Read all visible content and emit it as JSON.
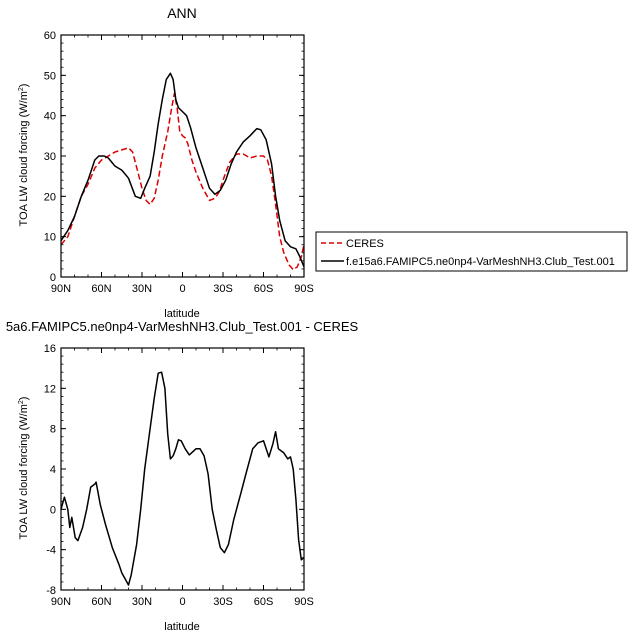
{
  "chart_data": [
    {
      "type": "line",
      "title": "ANN",
      "xlabel": "latitude",
      "ylabel_main": "TOA LW cloud forcing (W/m",
      "ylabel_sup": "2",
      "ylabel_close": ")",
      "xlim": [
        90,
        -90
      ],
      "ylim": [
        0,
        60
      ],
      "x_ticks": [
        90,
        60,
        30,
        0,
        -30,
        -60,
        -90
      ],
      "x_tick_labels": [
        "90N",
        "60N",
        "30N",
        "0",
        "30S",
        "60S",
        "90S"
      ],
      "y_ticks": [
        0,
        10,
        20,
        30,
        40,
        50,
        60
      ],
      "y_tick_labels": [
        "0",
        "10",
        "20",
        "30",
        "40",
        "50",
        "60"
      ],
      "legend_position": "right",
      "series": [
        {
          "name": "CERES",
          "color": "#dd0000",
          "dash": "dashed",
          "points": [
            [
              90,
              8
            ],
            [
              85,
              10
            ],
            [
              80,
              15
            ],
            [
              75,
              20
            ],
            [
              70,
              23
            ],
            [
              65,
              27
            ],
            [
              60,
              29
            ],
            [
              55,
              30
            ],
            [
              50,
              31
            ],
            [
              45,
              31.5
            ],
            [
              40,
              32
            ],
            [
              37,
              31
            ],
            [
              33,
              26
            ],
            [
              30,
              22
            ],
            [
              27,
              19
            ],
            [
              24,
              18
            ],
            [
              21,
              19.5
            ],
            [
              18,
              24
            ],
            [
              15,
              30
            ],
            [
              11,
              36
            ],
            [
              8,
              42
            ],
            [
              6,
              45.5
            ],
            [
              4,
              42
            ],
            [
              2,
              36
            ],
            [
              0,
              35
            ],
            [
              -2,
              34.5
            ],
            [
              -4,
              33
            ],
            [
              -7,
              29
            ],
            [
              -10,
              26
            ],
            [
              -15,
              22
            ],
            [
              -20,
              19
            ],
            [
              -24,
              19.5
            ],
            [
              -27,
              21
            ],
            [
              -31,
              25
            ],
            [
              -35,
              28.5
            ],
            [
              -40,
              30.5
            ],
            [
              -45,
              30.5
            ],
            [
              -50,
              29.5
            ],
            [
              -55,
              30
            ],
            [
              -60,
              30
            ],
            [
              -63,
              29
            ],
            [
              -66,
              25
            ],
            [
              -69,
              18
            ],
            [
              -72,
              10
            ],
            [
              -75,
              6
            ],
            [
              -79,
              3
            ],
            [
              -82,
              1.8
            ],
            [
              -85,
              2.5
            ],
            [
              -88,
              5
            ],
            [
              -90,
              8
            ]
          ]
        },
        {
          "name": "f.e15a6.FAMIPC5.ne0np4-VarMeshNH3.Club_Test.001",
          "color": "#000000",
          "dash": "solid",
          "points": [
            [
              90,
              9
            ],
            [
              85,
              11.5
            ],
            [
              80,
              15
            ],
            [
              75,
              20
            ],
            [
              70,
              24
            ],
            [
              65,
              29
            ],
            [
              62,
              30
            ],
            [
              58,
              30
            ],
            [
              55,
              29.5
            ],
            [
              50,
              27.5
            ],
            [
              45,
              26.5
            ],
            [
              40,
              24.5
            ],
            [
              35,
              20
            ],
            [
              31,
              19.5
            ],
            [
              28,
              22
            ],
            [
              24,
              25
            ],
            [
              21,
              31
            ],
            [
              18,
              38
            ],
            [
              15,
              44
            ],
            [
              12,
              49
            ],
            [
              9,
              50.5
            ],
            [
              7,
              49
            ],
            [
              5,
              44
            ],
            [
              3,
              42
            ],
            [
              0,
              41
            ],
            [
              -3,
              40
            ],
            [
              -6,
              37
            ],
            [
              -10,
              32
            ],
            [
              -15,
              27
            ],
            [
              -20,
              22
            ],
            [
              -24,
              20.5
            ],
            [
              -28,
              21.5
            ],
            [
              -32,
              24
            ],
            [
              -36,
              28
            ],
            [
              -40,
              31
            ],
            [
              -45,
              33.5
            ],
            [
              -50,
              35
            ],
            [
              -55,
              36.8
            ],
            [
              -58,
              36.5
            ],
            [
              -62,
              34
            ],
            [
              -66,
              28
            ],
            [
              -69,
              20
            ],
            [
              -72,
              14
            ],
            [
              -76,
              9
            ],
            [
              -80,
              7.5
            ],
            [
              -84,
              7
            ],
            [
              -87,
              5
            ],
            [
              -90,
              2.5
            ]
          ]
        }
      ]
    },
    {
      "type": "line",
      "title": "5a6.FAMIPC5.ne0np4-VarMeshNH3.Club_Test.001 - CERES",
      "xlabel": "latitude",
      "ylabel_main": "TOA LW cloud forcing (W/m",
      "ylabel_sup": "2",
      "ylabel_close": ")",
      "xlim": [
        90,
        -90
      ],
      "ylim": [
        -8,
        16
      ],
      "x_ticks": [
        90,
        60,
        30,
        0,
        -30,
        -60,
        -90
      ],
      "x_tick_labels": [
        "90N",
        "60N",
        "30N",
        "0",
        "30S",
        "60S",
        "90S"
      ],
      "y_ticks": [
        -8,
        -4,
        0,
        4,
        8,
        12,
        16
      ],
      "y_tick_labels": [
        "-8",
        "-4",
        "0",
        "4",
        "8",
        "12",
        "16"
      ],
      "series": [
        {
          "color": "#000000",
          "dash": "solid",
          "points": [
            [
              90,
              0
            ],
            [
              87.5,
              1.2
            ],
            [
              85,
              0
            ],
            [
              83.5,
              -1.8
            ],
            [
              82,
              -0.8
            ],
            [
              79.5,
              -2.8
            ],
            [
              77.5,
              -3.1
            ],
            [
              74,
              -1.8
            ],
            [
              71,
              0
            ],
            [
              68,
              2.2
            ],
            [
              65,
              2.5
            ],
            [
              64,
              2.7
            ],
            [
              61,
              0.5
            ],
            [
              57,
              -1.5
            ],
            [
              52,
              -3.8
            ],
            [
              47,
              -5.5
            ],
            [
              45,
              -6.3
            ],
            [
              40,
              -7.5
            ],
            [
              38,
              -6.5
            ],
            [
              34,
              -3.5
            ],
            [
              31,
              0
            ],
            [
              28,
              4
            ],
            [
              24,
              8
            ],
            [
              21,
              11
            ],
            [
              18,
              13.5
            ],
            [
              15.5,
              13.6
            ],
            [
              13,
              12
            ],
            [
              11,
              7.5
            ],
            [
              9,
              5
            ],
            [
              7,
              5.3
            ],
            [
              5,
              6
            ],
            [
              3,
              6.9
            ],
            [
              1,
              6.8
            ],
            [
              -2,
              6
            ],
            [
              -5,
              5.4
            ],
            [
              -10,
              6
            ],
            [
              -13,
              6
            ],
            [
              -16,
              5.3
            ],
            [
              -19,
              3.5
            ],
            [
              -22,
              0
            ],
            [
              -25,
              -2
            ],
            [
              -28,
              -3.8
            ],
            [
              -31,
              -4.3
            ],
            [
              -34,
              -3.5
            ],
            [
              -38,
              -1
            ],
            [
              -43,
              1.5
            ],
            [
              -47,
              3.5
            ],
            [
              -52,
              6
            ],
            [
              -56,
              6.6
            ],
            [
              -60,
              6.8
            ],
            [
              -64,
              5.2
            ],
            [
              -67,
              6.5
            ],
            [
              -69,
              7.7
            ],
            [
              -71,
              6
            ],
            [
              -75,
              5.6
            ],
            [
              -78,
              5
            ],
            [
              -80,
              5.2
            ],
            [
              -82,
              4
            ],
            [
              -84,
              1
            ],
            [
              -86,
              -3
            ],
            [
              -88,
              -5
            ],
            [
              -90,
              -4.8
            ]
          ]
        }
      ]
    }
  ]
}
